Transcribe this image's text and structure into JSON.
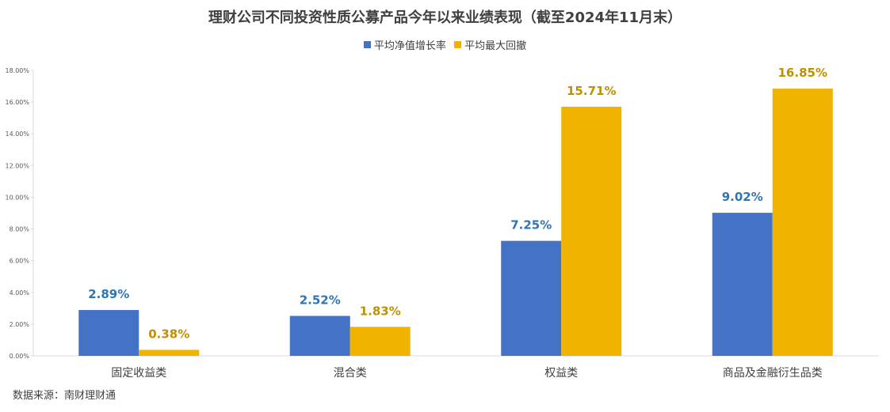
{
  "chart_data": {
    "type": "bar",
    "title": "理财公司不同投资性质公募产品今年以来业绩表现（截至2024年11月末）",
    "categories": [
      "固定收益类",
      "混合类",
      "权益类",
      "商品及金融衍生品类"
    ],
    "series": [
      {
        "name": "平均净值增长率",
        "values": [
          2.89,
          2.52,
          7.25,
          9.02
        ],
        "labels": [
          "2.89%",
          "2.52%",
          "7.25%",
          "9.02%"
        ],
        "color": "#4472C4",
        "label_color": "#2E75B6"
      },
      {
        "name": "平均最大回撤",
        "values": [
          0.38,
          1.83,
          15.71,
          16.85
        ],
        "labels": [
          "0.38%",
          "1.83%",
          "15.71%",
          "16.85%"
        ],
        "color": "#F0B400",
        "label_color": "#BF9000"
      }
    ],
    "yticks": [
      "0.00%",
      "2.00%",
      "4.00%",
      "6.00%",
      "8.00%",
      "10.00%",
      "12.00%",
      "14.00%",
      "16.00%",
      "18.00%"
    ],
    "ylim": [
      0,
      18
    ],
    "grid": false,
    "legend_position": "top-center",
    "source": "数据来源：南财理财通"
  }
}
